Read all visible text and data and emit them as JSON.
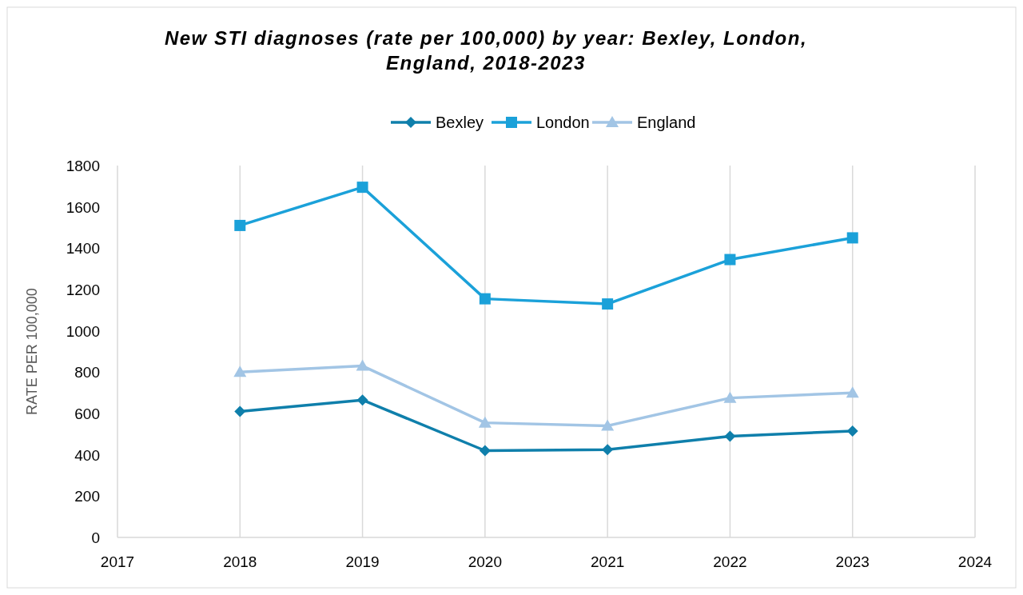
{
  "chart_data": {
    "type": "line",
    "title": "New STI diagnoses (rate per 100,000) by year: Bexley, London, England, 2018-2023",
    "ylabel": "RATE PER 100,000",
    "x": [
      2018,
      2019,
      2020,
      2021,
      2022,
      2023
    ],
    "series": [
      {
        "name": "Bexley",
        "color": "#0f7fab",
        "marker": "diamond",
        "values": [
          610,
          665,
          420,
          425,
          490,
          515
        ]
      },
      {
        "name": "London",
        "color": "#1ba1d9",
        "marker": "square",
        "values": [
          1510,
          1695,
          1155,
          1130,
          1345,
          1450
        ]
      },
      {
        "name": "England",
        "color": "#a2c5e5",
        "marker": "triangle",
        "values": [
          800,
          830,
          555,
          540,
          675,
          700
        ]
      }
    ],
    "xlim": [
      2017,
      2024
    ],
    "xticks": [
      2017,
      2018,
      2019,
      2020,
      2021,
      2022,
      2023,
      2024
    ],
    "ylim": [
      0,
      1800
    ],
    "yticks": [
      0,
      200,
      400,
      600,
      800,
      1000,
      1200,
      1400,
      1600,
      1800
    ],
    "grid": "x",
    "legend": "top",
    "line_style": "solid"
  }
}
